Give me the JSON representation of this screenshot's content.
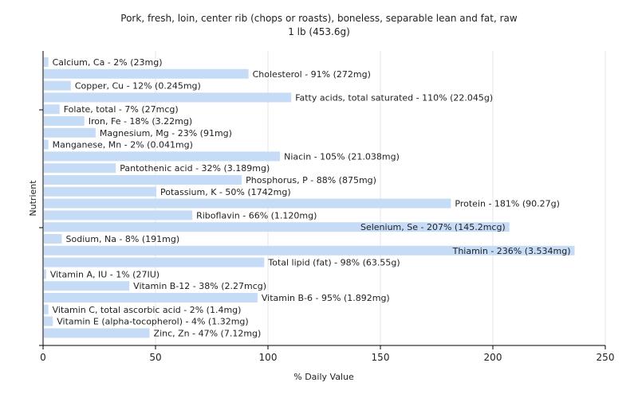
{
  "chart_data": {
    "type": "bar",
    "orientation": "horizontal",
    "title": "Pork, fresh, loin, center rib (chops or roasts), boneless, separable lean and fat, raw",
    "subtitle": "1 lb (453.6g)",
    "xlabel": "% Daily Value",
    "ylabel": "Nutrient",
    "xlim": [
      0,
      250
    ],
    "xticks": [
      0,
      50,
      100,
      150,
      200,
      250
    ],
    "grid": true,
    "bar_color": "#c6dcf6",
    "categories": [
      "Calcium, Ca",
      "Cholesterol",
      "Copper, Cu",
      "Fatty acids, total saturated",
      "Folate, total",
      "Iron, Fe",
      "Magnesium, Mg",
      "Manganese, Mn",
      "Niacin",
      "Pantothenic acid",
      "Phosphorus, P",
      "Potassium, K",
      "Protein",
      "Riboflavin",
      "Selenium, Se",
      "Sodium, Na",
      "Thiamin",
      "Total lipid (fat)",
      "Vitamin A, IU",
      "Vitamin B-12",
      "Vitamin B-6",
      "Vitamin C, total ascorbic acid",
      "Vitamin E (alpha-tocopherol)",
      "Zinc, Zn"
    ],
    "values": [
      2,
      91,
      12,
      110,
      7,
      18,
      23,
      2,
      105,
      32,
      88,
      50,
      181,
      66,
      207,
      8,
      236,
      98,
      1,
      38,
      95,
      2,
      4,
      47
    ],
    "labels": [
      "Calcium, Ca - 2% (23mg)",
      "Cholesterol - 91% (272mg)",
      "Copper, Cu - 12% (0.245mg)",
      "Fatty acids, total saturated - 110% (22.045g)",
      "Folate, total - 7% (27mcg)",
      "Iron, Fe - 18% (3.22mg)",
      "Magnesium, Mg - 23% (91mg)",
      "Manganese, Mn - 2% (0.041mg)",
      "Niacin - 105% (21.038mg)",
      "Pantothenic acid - 32% (3.189mg)",
      "Phosphorus, P - 88% (875mg)",
      "Potassium, K - 50% (1742mg)",
      "Protein - 181% (90.27g)",
      "Riboflavin - 66% (1.120mg)",
      "Selenium, Se - 207% (145.2mcg)",
      "Sodium, Na - 8% (191mg)",
      "Thiamin - 236% (3.534mg)",
      "Total lipid (fat) - 98% (63.55g)",
      "Vitamin A, IU - 1% (27IU)",
      "Vitamin B-12 - 38% (2.27mcg)",
      "Vitamin B-6 - 95% (1.892mg)",
      "Vitamin C, total ascorbic acid - 2% (1.4mg)",
      "Vitamin E (alpha-tocopherol) - 4% (1.32mg)",
      "Zinc, Zn - 47% (7.12mg)"
    ]
  }
}
